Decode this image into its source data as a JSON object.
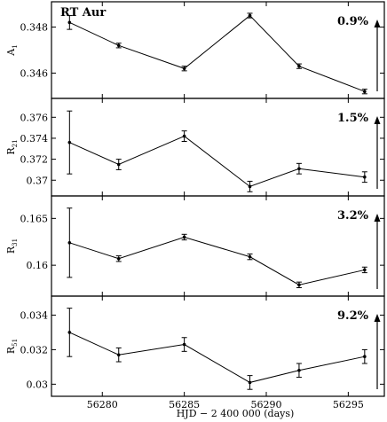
{
  "chart_data": {
    "type": "scatter",
    "star_name": "RT Aur",
    "xlabel": "HJD − 2 400 000 (days)",
    "xlim": [
      56276.9,
      56297.2
    ],
    "xticks": [
      56280,
      56285,
      56290,
      56295
    ],
    "x": [
      56278,
      56281,
      56285,
      56289,
      56292,
      56296
    ],
    "panels": [
      {
        "ylabel": "A",
        "ylabel_sub": "1",
        "ylim": [
          0.3449,
          0.3491
        ],
        "yticks": [
          0.346,
          0.348
        ],
        "ytick_labels": [
          "0.346",
          "0.348"
        ],
        "values": [
          0.3482,
          0.3472,
          0.3462,
          0.3485,
          0.3463,
          0.3452
        ],
        "errors": [
          0.0003,
          0.0001,
          0.0001,
          0.0001,
          0.0001,
          0.0001
        ],
        "percent": "0.9%"
      },
      {
        "ylabel": "R",
        "ylabel_sub": "21",
        "ylim": [
          0.3685,
          0.3778
        ],
        "yticks": [
          0.37,
          0.372,
          0.374,
          0.376
        ],
        "ytick_labels": [
          "0.37",
          "0.372",
          "0.374",
          "0.376"
        ],
        "values": [
          0.3736,
          0.3715,
          0.3742,
          0.3694,
          0.3711,
          0.3703
        ],
        "errors": [
          0.003,
          0.0005,
          0.0005,
          0.0005,
          0.0005,
          0.0005
        ],
        "percent": "1.5%"
      },
      {
        "ylabel": "R",
        "ylabel_sub": "31",
        "ylim": [
          0.1567,
          0.1674
        ],
        "yticks": [
          0.16,
          0.165
        ],
        "ytick_labels": [
          "0.16",
          "0.165"
        ],
        "values": [
          0.1624,
          0.1607,
          0.163,
          0.1609,
          0.1579,
          0.1595
        ],
        "errors": [
          0.0037,
          0.0003,
          0.0003,
          0.0003,
          0.0003,
          0.0003
        ],
        "percent": "3.2%"
      },
      {
        "ylabel": "R",
        "ylabel_sub": "51",
        "ylim": [
          0.0293,
          0.0351
        ],
        "yticks": [
          0.03,
          0.032,
          0.034
        ],
        "ytick_labels": [
          "0.03",
          "0.032",
          "0.034"
        ],
        "values": [
          0.033,
          0.0317,
          0.0323,
          0.0301,
          0.0308,
          0.0316
        ],
        "errors": [
          0.0014,
          0.0004,
          0.0004,
          0.0004,
          0.0004,
          0.0004
        ],
        "percent": "9.2%"
      }
    ]
  }
}
